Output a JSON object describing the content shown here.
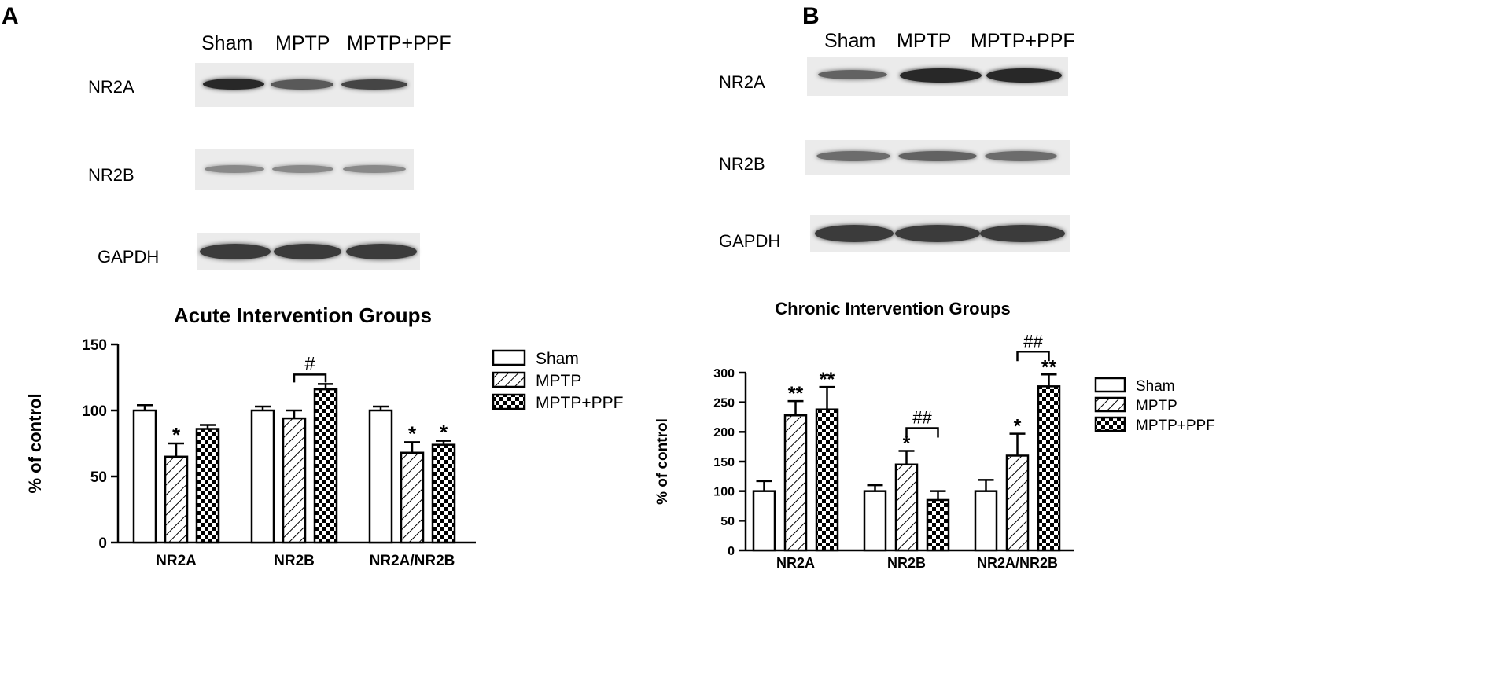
{
  "panels": [
    {
      "letter": "A",
      "lanes": [
        "Sham",
        "MPTP",
        "MPTP+PPF"
      ],
      "blots": [
        {
          "label": "NR2A",
          "intensities": [
            0.95,
            0.7,
            0.8
          ]
        },
        {
          "label": "NR2B",
          "intensities": [
            0.45,
            0.45,
            0.45
          ]
        },
        {
          "label": "GAPDH",
          "intensities": [
            0.85,
            0.85,
            0.85
          ]
        }
      ]
    },
    {
      "letter": "B",
      "lanes": [
        "Sham",
        "MPTP",
        "MPTP+PPF"
      ],
      "blots": [
        {
          "label": "NR2A",
          "intensities": [
            0.65,
            0.95,
            0.95
          ]
        },
        {
          "label": "NR2B",
          "intensities": [
            0.6,
            0.65,
            0.6
          ]
        },
        {
          "label": "GAPDH",
          "intensities": [
            0.85,
            0.85,
            0.85
          ]
        }
      ]
    }
  ],
  "chart_data": [
    {
      "type": "bar",
      "title": "Acute Intervention Groups",
      "ylabel": "% of control",
      "xlabel": "",
      "ylim": [
        0,
        150
      ],
      "yticks": [
        0,
        50,
        100,
        150
      ],
      "categories": [
        "NR2A",
        "NR2B",
        "NR2A/NR2B"
      ],
      "series": [
        {
          "name": "Sham",
          "pattern": "open",
          "values": [
            100,
            100,
            100
          ],
          "errors": [
            4,
            3,
            3
          ]
        },
        {
          "name": "MPTP",
          "pattern": "hatched",
          "values": [
            65,
            94,
            68
          ],
          "errors": [
            10,
            6,
            8
          ]
        },
        {
          "name": "MPTP+PPF",
          "pattern": "checkered",
          "values": [
            86,
            116,
            74
          ],
          "errors": [
            3,
            4,
            3
          ]
        }
      ],
      "significance": [
        {
          "category": 0,
          "series": 1,
          "mark": "*"
        },
        {
          "category": 2,
          "series": 1,
          "mark": "*"
        },
        {
          "category": 2,
          "series": 2,
          "mark": "*"
        }
      ],
      "brackets": [
        {
          "category": 1,
          "from_series": 1,
          "to_series": 2,
          "mark": "#"
        }
      ],
      "legend_position": "right",
      "grid": false
    },
    {
      "type": "bar",
      "title": "Chronic Intervention Groups",
      "ylabel": "% of control",
      "xlabel": "",
      "ylim": [
        0,
        300
      ],
      "yticks": [
        0,
        50,
        100,
        150,
        200,
        250,
        300
      ],
      "categories": [
        "NR2A",
        "NR2B",
        "NR2A/NR2B"
      ],
      "series": [
        {
          "name": "Sham",
          "pattern": "open",
          "values": [
            100,
            100,
            100
          ],
          "errors": [
            17,
            10,
            19
          ]
        },
        {
          "name": "MPTP",
          "pattern": "hatched",
          "values": [
            228,
            145,
            160
          ],
          "errors": [
            24,
            23,
            37
          ]
        },
        {
          "name": "MPTP+PPF",
          "pattern": "checkered",
          "values": [
            238,
            85,
            277
          ],
          "errors": [
            38,
            15,
            20
          ]
        }
      ],
      "significance": [
        {
          "category": 0,
          "series": 1,
          "mark": "**"
        },
        {
          "category": 0,
          "series": 2,
          "mark": "**"
        },
        {
          "category": 1,
          "series": 1,
          "mark": "*"
        },
        {
          "category": 2,
          "series": 1,
          "mark": "*"
        },
        {
          "category": 2,
          "series": 2,
          "mark": "**"
        }
      ],
      "brackets": [
        {
          "category": 1,
          "from_series": 1,
          "to_series": 2,
          "mark": "##"
        },
        {
          "category": 2,
          "from_series": 1,
          "to_series": 2,
          "mark": "##"
        }
      ],
      "legend_position": "right",
      "grid": false
    }
  ]
}
